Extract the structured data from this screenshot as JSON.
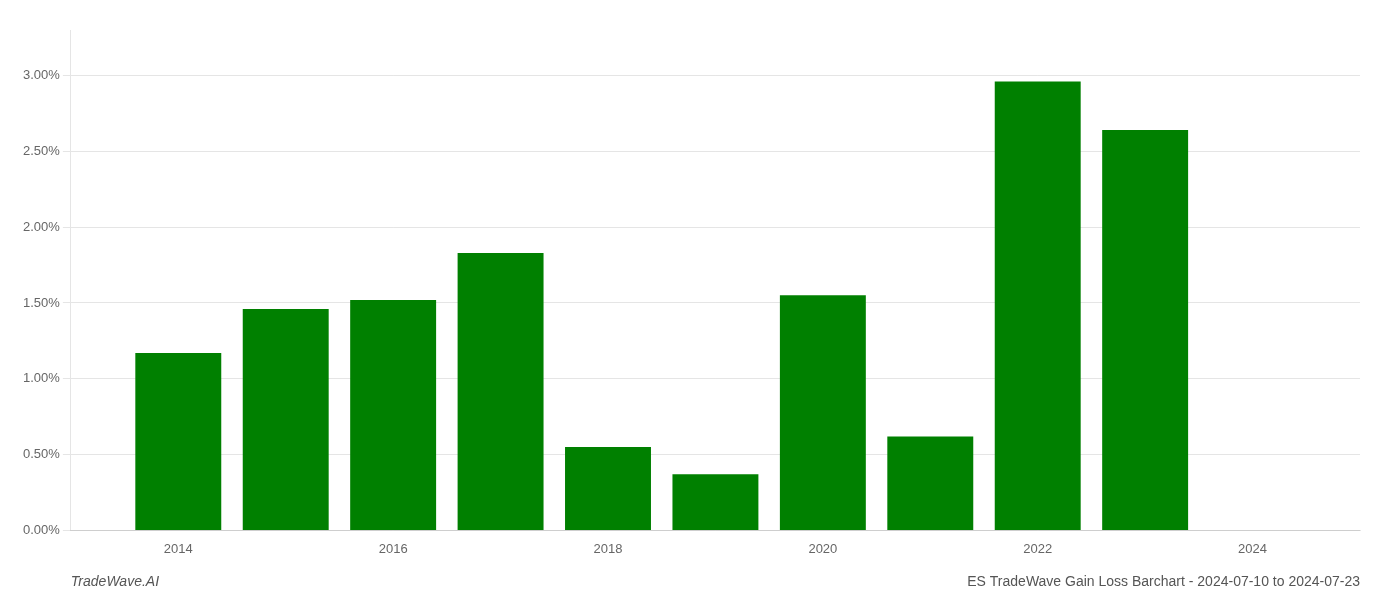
{
  "chart_data": {
    "type": "bar",
    "title": "ES TradeWave Gain Loss Barchart - 2024-07-10 to 2024-07-23",
    "annotations": [
      "TradeWave.AI"
    ],
    "x": [
      2014,
      2015,
      2016,
      2017,
      2018,
      2019,
      2020,
      2021,
      2022,
      2023
    ],
    "values": [
      0.0117,
      0.0146,
      0.0152,
      0.0183,
      0.0055,
      0.0037,
      0.0155,
      0.0062,
      0.0296,
      0.0264
    ],
    "color": "#008000",
    "xlim": [
      2013.0,
      2025.0
    ],
    "xticks": [
      2014,
      2016,
      2018,
      2020,
      2022,
      2024
    ],
    "ylim": [
      0.0,
      0.033
    ],
    "yticks": [
      {
        "value": 0.0,
        "label": "0.00%"
      },
      {
        "value": 0.005,
        "label": "0.50%"
      },
      {
        "value": 0.01,
        "label": "1.00%"
      },
      {
        "value": 0.015,
        "label": "1.50%"
      },
      {
        "value": 0.02,
        "label": "2.00%"
      },
      {
        "value": 0.025,
        "label": "2.50%"
      },
      {
        "value": 0.03,
        "label": "3.00%"
      }
    ],
    "grid": "y"
  }
}
